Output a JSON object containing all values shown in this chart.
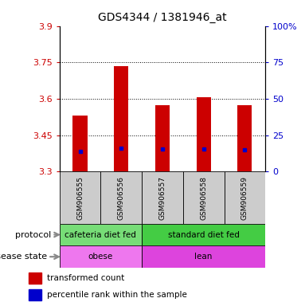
{
  "title": "GDS4344 / 1381946_at",
  "samples": [
    "GSM906555",
    "GSM906556",
    "GSM906557",
    "GSM906558",
    "GSM906559"
  ],
  "bar_values": [
    3.53,
    3.735,
    3.575,
    3.607,
    3.575
  ],
  "bar_base": 3.3,
  "blue_dot_values": [
    3.385,
    3.398,
    3.392,
    3.392,
    3.39
  ],
  "ylim_left": [
    3.3,
    3.9
  ],
  "ylim_right": [
    0,
    100
  ],
  "yticks_left": [
    3.3,
    3.45,
    3.6,
    3.75,
    3.9
  ],
  "yticks_right": [
    0,
    25,
    50,
    75,
    100
  ],
  "ytick_labels_left": [
    "3.3",
    "3.45",
    "3.6",
    "3.75",
    "3.9"
  ],
  "ytick_labels_right": [
    "0",
    "25",
    "50",
    "75",
    "100%"
  ],
  "bar_color": "#cc0000",
  "blue_color": "#0000cc",
  "protocol_groups": [
    {
      "label": "cafeteria diet fed",
      "samples": [
        0,
        1
      ],
      "color": "#77dd77"
    },
    {
      "label": "standard diet fed",
      "samples": [
        2,
        3,
        4
      ],
      "color": "#44cc44"
    }
  ],
  "disease_groups": [
    {
      "label": "obese",
      "samples": [
        0,
        1
      ],
      "color": "#ee77ee"
    },
    {
      "label": "lean",
      "samples": [
        2,
        3,
        4
      ],
      "color": "#dd44dd"
    }
  ],
  "protocol_label": "protocol",
  "disease_label": "disease state",
  "legend_red": "transformed count",
  "legend_blue": "percentile rank within the sample",
  "font_color_left": "#cc0000",
  "font_color_right": "#0000cc",
  "sname_bg": "#cccccc"
}
